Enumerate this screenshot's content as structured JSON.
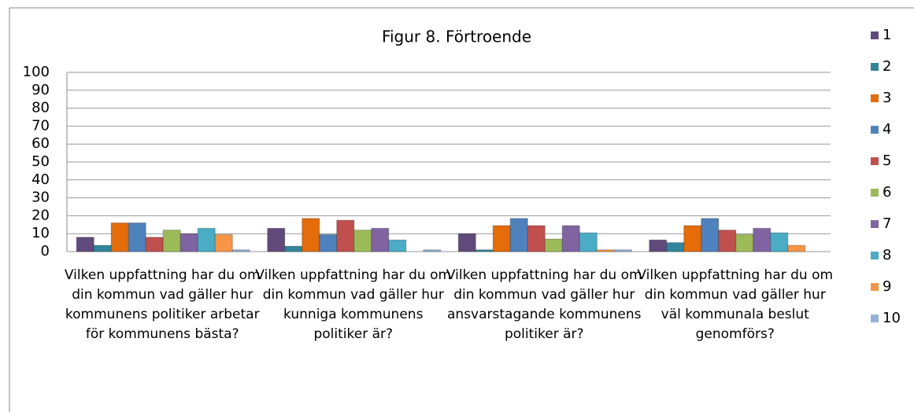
{
  "chart_data": {
    "type": "bar",
    "title": "Figur 8. Förtroende",
    "categories": [
      "Vilken uppfattning har du om din kommun vad gäller hur kommunens politiker arbetar för kommunens bästa?",
      "Vilken uppfattning har du om din kommun vad gäller hur kunniga kommunens politiker är?",
      "Vilken uppfattning har du om din kommun vad gäller hur ansvarstagande kommunens politiker är?",
      "Vilken uppfattning har du om din kommun vad gäller hur väl kommunala beslut genomförs?"
    ],
    "series": [
      {
        "name": "1",
        "color": "#604a7b",
        "values": [
          8,
          13,
          10,
          6.5
        ]
      },
      {
        "name": "2",
        "color": "#31859c",
        "values": [
          3.5,
          3,
          1,
          5
        ]
      },
      {
        "name": "3",
        "color": "#e46c0a",
        "values": [
          16,
          18.5,
          14.5,
          14.5
        ]
      },
      {
        "name": "4",
        "color": "#4f81bd",
        "values": [
          16,
          9.5,
          18.5,
          18.5
        ]
      },
      {
        "name": "5",
        "color": "#c0504d",
        "values": [
          8,
          17.5,
          14.5,
          12
        ]
      },
      {
        "name": "6",
        "color": "#9bbb59",
        "values": [
          12,
          12,
          7,
          9.5
        ]
      },
      {
        "name": "7",
        "color": "#8064a2",
        "values": [
          10,
          13,
          14.5,
          13
        ]
      },
      {
        "name": "8",
        "color": "#4bacc6",
        "values": [
          13,
          6.5,
          10.5,
          10.5
        ]
      },
      {
        "name": "9",
        "color": "#f79646",
        "values": [
          9.5,
          0,
          1,
          3.5
        ]
      },
      {
        "name": "10",
        "color": "#95b3d7",
        "values": [
          1,
          1,
          1,
          0
        ]
      }
    ],
    "ylim": [
      0,
      100
    ],
    "yticks": [
      0,
      10,
      20,
      30,
      40,
      50,
      60,
      70,
      80,
      90,
      100
    ],
    "grid": true,
    "legend": "right"
  }
}
